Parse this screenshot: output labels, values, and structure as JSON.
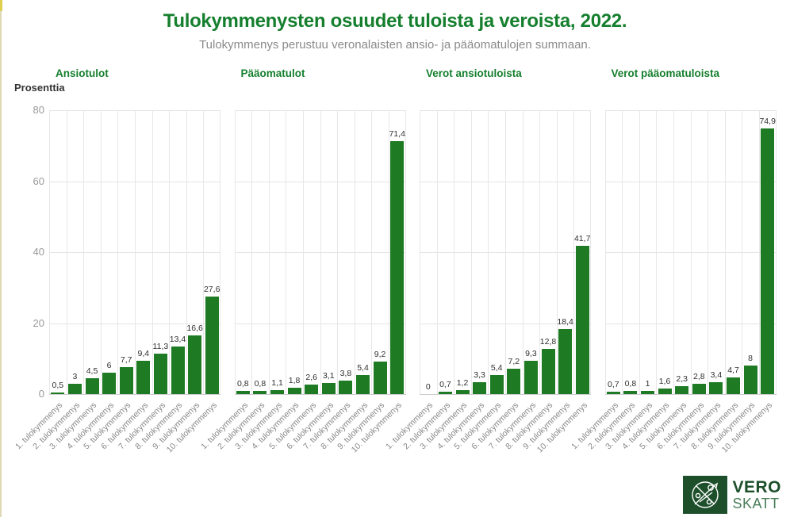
{
  "page": {
    "title": "Tulokymmenysten osuudet tuloista ja veroista, 2022.",
    "subtitle": "Tulokymmenys perustuu veronalaisten ansio- ja pääomatulojen summaan.",
    "y_axis_title": "Prosenttia"
  },
  "colors": {
    "bar_green": "#1e7b23",
    "title_green": "#157f2e",
    "logo_green": "#1d4f2b",
    "gridline": "#e4e4e4",
    "tick_label_gray": "#999999"
  },
  "chart_data": [
    {
      "type": "bar",
      "title": "Ansiotulot",
      "categories": [
        "1. tulokymmenys",
        "2. tulokymmenys",
        "3. tulokymmenys",
        "4. tulokymmenys",
        "5. tulokymmenys",
        "6. tulokymmenys",
        "7. tulokymmenys",
        "8. tulokymmenys",
        "9. tulokymmenys",
        "10. tulokymmenys"
      ],
      "values": [
        0.5,
        3,
        4.5,
        6,
        7.7,
        9.4,
        11.3,
        13.4,
        16.6,
        27.6
      ],
      "value_labels": [
        "0,5",
        "3",
        "4,5",
        "6",
        "7,7",
        "9,4",
        "11,3",
        "13,4",
        "16,6",
        "27,6"
      ],
      "ylabel": "Prosenttia",
      "ylim": [
        0,
        80
      ],
      "yticks": [
        0,
        20,
        40,
        60,
        80
      ],
      "grid": true,
      "legend": false
    },
    {
      "type": "bar",
      "title": "Pääomatulot",
      "categories": [
        "1. tulokymmenys",
        "2. tulokymmenys",
        "3. tulokymmenys",
        "4. tulokymmenys",
        "5. tulokymmenys",
        "6. tulokymmenys",
        "7. tulokymmenys",
        "8. tulokymmenys",
        "9. tulokymmenys",
        "10. tulokymmenys"
      ],
      "values": [
        0.8,
        0.8,
        1.1,
        1.8,
        2.6,
        3.1,
        3.8,
        5.4,
        9.2,
        71.4
      ],
      "value_labels": [
        "0,8",
        "0,8",
        "1,1",
        "1,8",
        "2,6",
        "3,1",
        "3,8",
        "5,4",
        "9,2",
        "71,4"
      ],
      "ylabel": "Prosenttia",
      "ylim": [
        0,
        80
      ],
      "yticks": [
        0,
        20,
        40,
        60,
        80
      ],
      "grid": true,
      "legend": false
    },
    {
      "type": "bar",
      "title": "Verot ansiotuloista",
      "categories": [
        "1. tulokymmenys",
        "2. tulokymmenys",
        "3. tulokymmenys",
        "4. tulokymmenys",
        "5. tulokymmenys",
        "6. tulokymmenys",
        "7. tulokymmenys",
        "8. tulokymmenys",
        "9. tulokymmenys",
        "10. tulokymmenys"
      ],
      "values": [
        0,
        0.7,
        1.2,
        3.3,
        5.4,
        7.2,
        9.3,
        12.8,
        18.4,
        41.7
      ],
      "value_labels": [
        "0",
        "0,7",
        "1,2",
        "3,3",
        "5,4",
        "7,2",
        "9,3",
        "12,8",
        "18,4",
        "41,7"
      ],
      "ylabel": "Prosenttia",
      "ylim": [
        0,
        80
      ],
      "yticks": [
        0,
        20,
        40,
        60,
        80
      ],
      "grid": true,
      "legend": false
    },
    {
      "type": "bar",
      "title": "Verot pääomatuloista",
      "categories": [
        "1. tulokymmenys",
        "2. tulokymmenys",
        "3. tulokymmenys",
        "4. tulokymmenys",
        "5. tulokymmenys",
        "6. tulokymmenys",
        "7. tulokymmenys",
        "8. tulokymmenys",
        "9. tulokymmenys",
        "10. tulokymmenys"
      ],
      "values": [
        0.7,
        0.8,
        1,
        1.6,
        2.3,
        2.8,
        3.4,
        4.7,
        8,
        74.9
      ],
      "value_labels": [
        "0,7",
        "0,8",
        "1",
        "1,6",
        "2,3",
        "2,8",
        "3,4",
        "4,7",
        "8",
        "74,9"
      ],
      "ylabel": "Prosenttia",
      "ylim": [
        0,
        80
      ],
      "yticks": [
        0,
        20,
        40,
        60,
        80
      ],
      "grid": true,
      "legend": false
    }
  ],
  "logo": {
    "line1": "VERO",
    "line2": "SKATT"
  }
}
